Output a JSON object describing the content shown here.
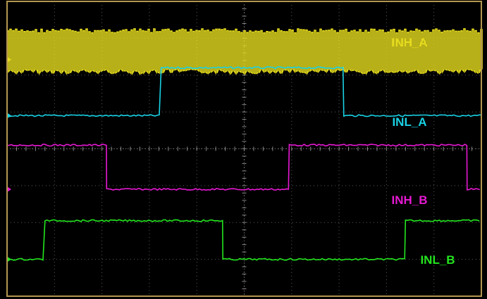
{
  "chart_data": {
    "type": "line",
    "title": "",
    "xlabel": "",
    "ylabel": "",
    "x_divisions": 10,
    "y_divisions": 8,
    "grid": true,
    "series": [
      {
        "name": "INH_A",
        "color": "#e6dc1e",
        "style": "high-frequency switching",
        "low_div": 6.1,
        "high_div": 7.2,
        "segments": [
          {
            "x_from": 0,
            "x_to": 10,
            "level": "switching"
          }
        ]
      },
      {
        "name": "INL_A",
        "color": "#19d2e6",
        "low_div": 4.9,
        "high_div": 6.2,
        "segments": [
          {
            "x_from": 0,
            "x_to": 3.25,
            "level": "low"
          },
          {
            "x_from": 3.25,
            "x_to": 7.1,
            "level": "high"
          },
          {
            "x_from": 7.1,
            "x_to": 10,
            "level": "low"
          }
        ]
      },
      {
        "name": "INH_B",
        "color": "#e619d2",
        "low_div": 2.9,
        "high_div": 4.1,
        "segments": [
          {
            "x_from": 0,
            "x_to": 2.1,
            "level": "high"
          },
          {
            "x_from": 2.1,
            "x_to": 5.95,
            "level": "low"
          },
          {
            "x_from": 5.95,
            "x_to": 9.7,
            "level": "high"
          },
          {
            "x_from": 9.7,
            "x_to": 10,
            "level": "low"
          }
        ]
      },
      {
        "name": "INL_B",
        "color": "#23e61e",
        "low_div": 1.0,
        "high_div": 2.05,
        "segments": [
          {
            "x_from": 0,
            "x_to": 0.8,
            "level": "low"
          },
          {
            "x_from": 0.8,
            "x_to": 4.55,
            "level": "high"
          },
          {
            "x_from": 4.55,
            "x_to": 8.4,
            "level": "low"
          },
          {
            "x_from": 8.4,
            "x_to": 10,
            "level": "high"
          }
        ]
      }
    ],
    "background_color": "#000000",
    "frame_color": "#b49650",
    "grid_color": "#5a5a5a"
  }
}
